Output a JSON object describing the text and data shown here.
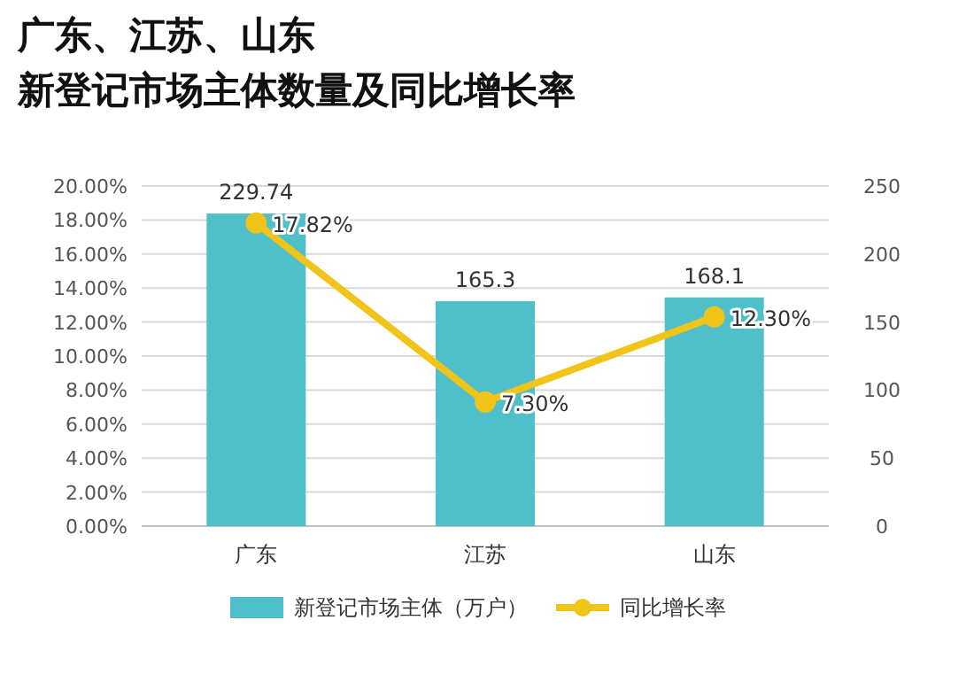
{
  "chart_data": {
    "type": "bar",
    "title": "广东、江苏、山东",
    "subtitle": "新登记市场主体数量及同比增长率",
    "categories": [
      "广东",
      "江苏",
      "山东"
    ],
    "series": [
      {
        "name": "新登记市场主体（万户）",
        "axis": "y2",
        "color": "#4fbfc9",
        "values": [
          229.74,
          165.3,
          168.1
        ],
        "value_labels": [
          "229.74",
          "165.3",
          "168.1"
        ]
      },
      {
        "name": "同比增长率",
        "type": "line",
        "color": "#f0c419",
        "marker": "circle",
        "values": [
          17.82,
          7.3,
          12.3
        ],
        "value_labels": [
          "17.82%",
          "7.30%",
          "12.30%"
        ]
      }
    ],
    "ylim": [
      0,
      20
    ],
    "yticks": [
      {
        "value": 0,
        "label": "0.00%"
      },
      {
        "value": 2,
        "label": "2.00%"
      },
      {
        "value": 4,
        "label": "4.00%"
      },
      {
        "value": 6,
        "label": "6.00%"
      },
      {
        "value": 8,
        "label": "8.00%"
      },
      {
        "value": 10,
        "label": "10.00%"
      },
      {
        "value": 12,
        "label": "12.00%"
      },
      {
        "value": 14,
        "label": "14.00%"
      },
      {
        "value": 16,
        "label": "16.00%"
      },
      {
        "value": 18,
        "label": "18.00%"
      },
      {
        "value": 20,
        "label": "20.00%"
      }
    ],
    "y2lim": [
      0,
      250
    ],
    "y2ticks": [
      0,
      50,
      100,
      150,
      200,
      250
    ],
    "grid": "y",
    "legend": "bottom"
  }
}
